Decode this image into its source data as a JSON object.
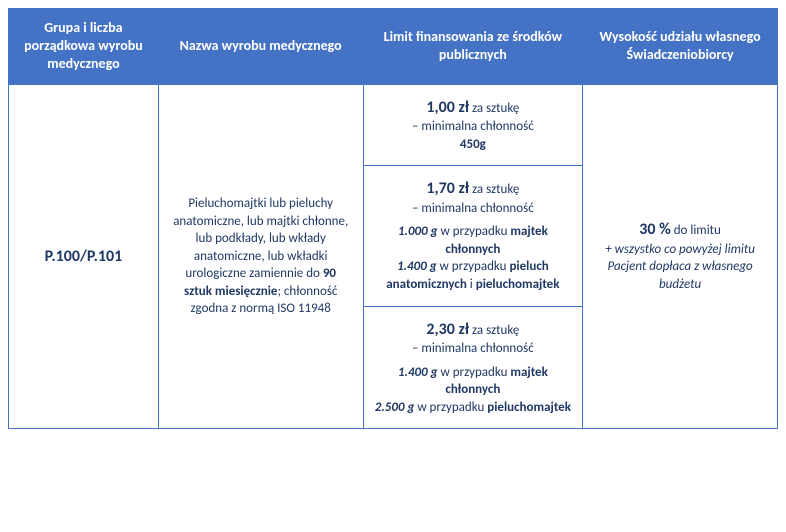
{
  "header": {
    "col1": "Grupa i liczba porządkowa wyrobu medycznego",
    "col2": "Nazwa wyrobu medycznego",
    "col3": "Limit finansowania ze środków publicznych",
    "col4": "Wysokość udziału własnego Świadczeniobiorcy"
  },
  "row": {
    "code": "P.100/P.101",
    "product_pre": "Pieluchomajtki lub pieluchy anatomiczne, lub majtki chłonne, lub podkłady, lub wkłady anatomiczne, lub wkładki urologiczne zamiennie do ",
    "product_qty": "90 sztuk miesięcznie",
    "product_post": "; chłonność zgodna z normą ISO 11948",
    "tiers": [
      {
        "price": "1,00 zł",
        "per": " za sztukę",
        "sub1": "– minimalna chłonność",
        "blocks": [
          {
            "weight": "450g",
            "case": ""
          }
        ]
      },
      {
        "price": "1,70 zł",
        "per": " za sztukę",
        "sub1": "– minimalna chłonność",
        "blocks": [
          {
            "weight": "1.000 g",
            "case_pre": " w przypadku ",
            "case_bold": "majtek chłonnych"
          },
          {
            "weight": "1.400 g",
            "case_pre": " w przypadku ",
            "case_bold": "pieluch anatomicznych",
            "case_join": " i ",
            "case_bold2": "pieluchomajtek"
          }
        ]
      },
      {
        "price": "2,30 zł",
        "per": " za sztukę",
        "sub1": "– minimalna chłonność",
        "blocks": [
          {
            "weight": "1.400 g",
            "case_pre": " w przypadku ",
            "case_bold": "majtek chłonnych"
          },
          {
            "weight": "2.500 g",
            "case_pre": " w przypadku ",
            "case_bold": "pieluchomajtek"
          }
        ]
      }
    ],
    "share_pct": "30 %",
    "share_suffix": " do limitu",
    "share_note": "+ wszystko co powyżej limitu Pacjent dopłaca z własnego budżetu"
  },
  "colors": {
    "header_bg": "#4472c4",
    "header_fg": "#ffffff",
    "border": "#4472c4",
    "body_fg": "#1f3864"
  }
}
